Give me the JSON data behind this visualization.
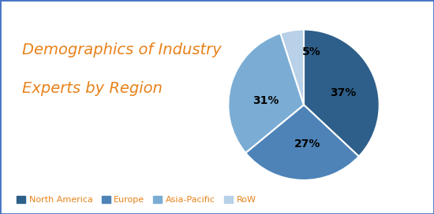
{
  "title_line1": "Demographics of Industry",
  "title_line2": "Experts by Region",
  "title_color": "#E8821A",
  "title_fontsize": 14,
  "labels": [
    "North America",
    "Europe",
    "Asia-Pacific",
    "RoW"
  ],
  "values": [
    37,
    27,
    31,
    5
  ],
  "colors": [
    "#2E5F8A",
    "#4E83B8",
    "#7BADD4",
    "#B8D0E8"
  ],
  "pct_labels": [
    "37%",
    "27%",
    "31%",
    "5%"
  ],
  "legend_text_color": "#E8821A",
  "background_color": "#FFFFFF",
  "border_color": "#4472C4",
  "startangle": 90
}
